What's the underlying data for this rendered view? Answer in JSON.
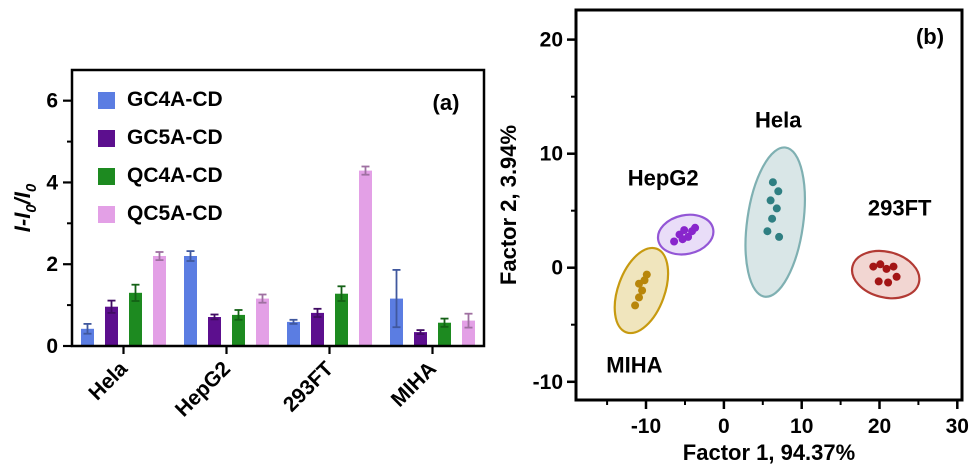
{
  "figure": {
    "background": "#ffffff"
  },
  "chart_data": [
    {
      "type": "bar",
      "panel_label": "(a)",
      "ylabel": "I-I0/I0",
      "ylabel_parts": [
        {
          "t": "I-I"
        },
        {
          "t": "0",
          "sub": true
        },
        {
          "t": "/I"
        },
        {
          "t": "0",
          "sub": true
        }
      ],
      "ylim": [
        0,
        6.75
      ],
      "yticks": [
        0,
        2,
        4,
        6
      ],
      "yticks_minor": [
        1,
        3,
        5
      ],
      "categories": [
        "Hela",
        "HepG2",
        "293FT",
        "MIHA"
      ],
      "series": [
        {
          "name": "GC4A-CD",
          "color": "#5b7de2",
          "values": [
            0.42,
            2.2,
            0.59,
            1.16
          ],
          "errors": [
            0.12,
            0.12,
            0.05,
            0.7
          ]
        },
        {
          "name": "GC5A-CD",
          "color": "#5c0f8e",
          "values": [
            0.96,
            0.71,
            0.81,
            0.34
          ],
          "errors": [
            0.15,
            0.06,
            0.1,
            0.05
          ]
        },
        {
          "name": "QC4A-CD",
          "color": "#1d8a20",
          "values": [
            1.3,
            0.76,
            1.28,
            0.57
          ],
          "errors": [
            0.2,
            0.12,
            0.18,
            0.1
          ]
        },
        {
          "name": "QC5A-CD",
          "color": "#e3a0e6",
          "values": [
            2.2,
            1.16,
            4.29,
            0.62
          ],
          "errors": [
            0.1,
            0.1,
            0.1,
            0.17
          ]
        }
      ],
      "legend_position": "top-left",
      "grid": false
    },
    {
      "type": "scatter",
      "panel_label": "(b)",
      "xlabel": "Factor 1, 94.37%",
      "ylabel": "Factor 2, 3.94%",
      "xlim": [
        -19,
        30.6
      ],
      "ylim": [
        -11.6,
        22.6
      ],
      "xticks": [
        -10,
        0,
        10,
        20,
        30
      ],
      "yticks": [
        -10,
        0,
        10,
        20
      ],
      "xticks_minor": [
        -15,
        -5,
        5,
        15,
        25
      ],
      "yticks_minor": [
        -5,
        5,
        15
      ],
      "grid": false,
      "clusters": [
        {
          "name": "MIHA",
          "label_pos": [
            -11.5,
            -9.2
          ],
          "point_color": "#b8860b",
          "ellipse_fill": "#ecdfad",
          "ellipse_stroke": "#c79a10",
          "ellipse": {
            "cx": -10.6,
            "cy": -2.0,
            "rx": 3.0,
            "ry": 3.9,
            "rotate": 20
          },
          "points": [
            [
              -11.4,
              -3.3
            ],
            [
              -10.9,
              -2.6
            ],
            [
              -10.5,
              -2.0
            ],
            [
              -10.9,
              -1.4
            ],
            [
              -10.2,
              -1.1
            ],
            [
              -9.9,
              -0.6
            ]
          ]
        },
        {
          "name": "HepG2",
          "label_pos": [
            -7.8,
            7.2
          ],
          "point_color": "#8825cc",
          "ellipse_fill": "#e4d4f6",
          "ellipse_stroke": "#9356d6",
          "ellipse": {
            "cx": -4.9,
            "cy": 2.9,
            "rx": 3.6,
            "ry": 1.7,
            "rotate": -12
          },
          "points": [
            [
              -6.4,
              2.3
            ],
            [
              -5.7,
              2.9
            ],
            [
              -5.1,
              3.3
            ],
            [
              -4.6,
              2.7
            ],
            [
              -4.1,
              3.2
            ],
            [
              -3.7,
              3.5
            ],
            [
              -5.3,
              2.5
            ]
          ]
        },
        {
          "name": "Hela",
          "label_pos": [
            7.0,
            12.3
          ],
          "point_color": "#2f7f82",
          "ellipse_fill": "#cfe0e1",
          "ellipse_stroke": "#7fb0b2",
          "ellipse": {
            "cx": 6.6,
            "cy": 4.0,
            "rx": 3.6,
            "ry": 6.6,
            "rotate": 8
          },
          "points": [
            [
              6.3,
              7.5
            ],
            [
              7.0,
              6.7
            ],
            [
              6.0,
              5.9
            ],
            [
              6.8,
              5.2
            ],
            [
              6.2,
              4.3
            ],
            [
              5.6,
              3.2
            ],
            [
              7.1,
              2.7
            ]
          ]
        },
        {
          "name": "293FT",
          "label_pos": [
            22.6,
            4.6
          ],
          "point_color": "#a31515",
          "ellipse_fill": "#efccc7",
          "ellipse_stroke": "#b23a34",
          "ellipse": {
            "cx": 20.8,
            "cy": -0.6,
            "rx": 4.4,
            "ry": 2.0,
            "rotate": 14
          },
          "points": [
            [
              19.2,
              0.1
            ],
            [
              20.1,
              0.3
            ],
            [
              20.9,
              -0.1
            ],
            [
              21.8,
              0.1
            ],
            [
              19.9,
              -1.2
            ],
            [
              21.1,
              -1.3
            ],
            [
              22.2,
              -0.8
            ]
          ]
        }
      ]
    }
  ]
}
